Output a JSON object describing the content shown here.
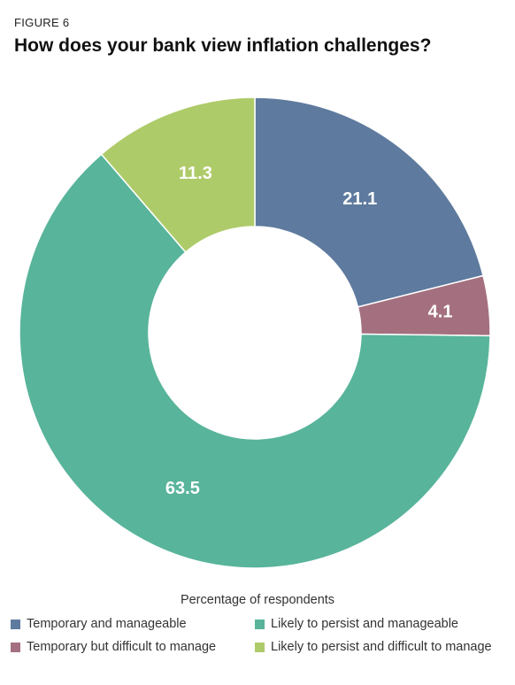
{
  "figure_label": "FIGURE 6",
  "title": "How does your bank view inflation challenges?",
  "chart_data": {
    "type": "pie",
    "donut": true,
    "title": "How does your bank view inflation challenges?",
    "unit_label": "Percentage of respondents",
    "legend_placement": "bottom",
    "slices": [
      {
        "name": "Temporary and manageable",
        "value": 21.1,
        "label": "21.1",
        "color": "#5e7a9e"
      },
      {
        "name": "Temporary but difficult to manage",
        "value": 4.1,
        "label": "4.1",
        "color": "#a4707f"
      },
      {
        "name": "Likely to persist and manageable",
        "value": 63.5,
        "label": "63.5",
        "color": "#58b49b"
      },
      {
        "name": "Likely to persist and difficult to manage",
        "value": 11.3,
        "label": "11.3",
        "color": "#aecb69"
      }
    ]
  },
  "legend": {
    "title": "Percentage of respondents",
    "items": [
      {
        "label": "Temporary and manageable",
        "color": "#5e7a9e"
      },
      {
        "label": "Likely to persist and manageable",
        "color": "#58b49b"
      },
      {
        "label": "Temporary but difficult to manage",
        "color": "#a4707f"
      },
      {
        "label": "Likely to persist and difficult to manage",
        "color": "#aecb69"
      }
    ]
  }
}
